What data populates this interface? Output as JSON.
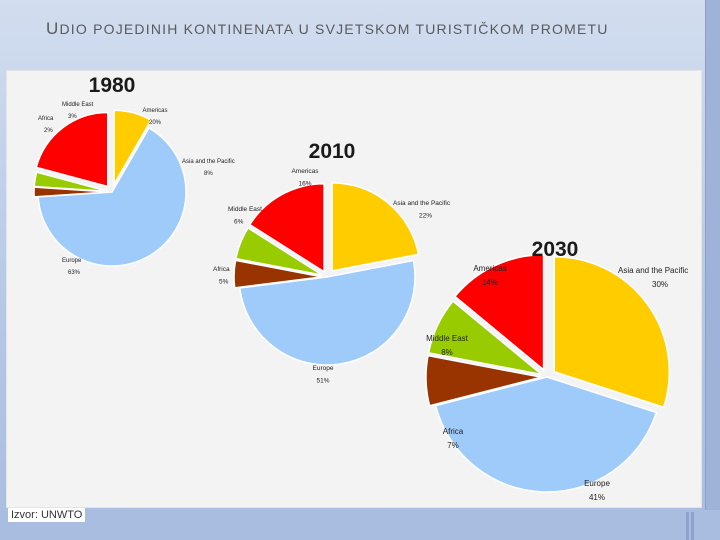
{
  "slide": {
    "title": "Udio pojedinih kontinenata u svjetskom turističkom prometu",
    "source": "Izvor: UNWTO"
  },
  "colors": {
    "Americas": "#ff0000",
    "Asia and the Pacific": "#ffcc00",
    "Europe": "#9fcbfb",
    "Africa": "#993300",
    "Middle East": "#99cc00"
  },
  "chart_data": [
    {
      "type": "pie",
      "title": "1980",
      "slices": [
        {
          "label": "Americas",
          "value": 20,
          "value_label": "20%"
        },
        {
          "label": "Asia and the Pacific",
          "value": 8,
          "value_label": "8%"
        },
        {
          "label": "Europe",
          "value": 63,
          "value_label": "63%"
        },
        {
          "label": "Africa",
          "value": 2,
          "value_label": "2%"
        },
        {
          "label": "Middle East",
          "value": 3,
          "value_label": "3%"
        }
      ]
    },
    {
      "type": "pie",
      "title": "2010",
      "slices": [
        {
          "label": "Americas",
          "value": 16,
          "value_label": "16%"
        },
        {
          "label": "Asia and the Pacific",
          "value": 22,
          "value_label": "22%"
        },
        {
          "label": "Europe",
          "value": 51,
          "value_label": "51%"
        },
        {
          "label": "Africa",
          "value": 5,
          "value_label": "5%"
        },
        {
          "label": "Middle East",
          "value": 6,
          "value_label": "6%"
        }
      ]
    },
    {
      "type": "pie",
      "title": "2030",
      "slices": [
        {
          "label": "Americas",
          "value": 14,
          "value_label": "14%"
        },
        {
          "label": "Asia and the Pacific",
          "value": 30,
          "value_label": "30%"
        },
        {
          "label": "Europe",
          "value": 41,
          "value_label": "41%"
        },
        {
          "label": "Africa",
          "value": 7,
          "value_label": "7%"
        },
        {
          "label": "Middle East",
          "value": 8,
          "value_label": "8%"
        }
      ]
    }
  ]
}
